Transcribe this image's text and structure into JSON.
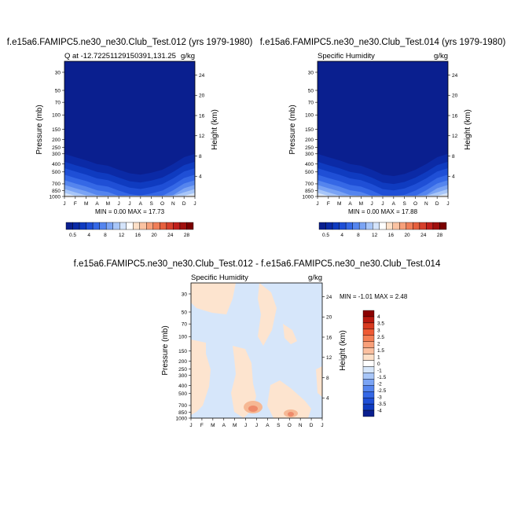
{
  "colors": {
    "upper_fill": "#0a1f8f",
    "blue_ramp": [
      "#0a1f8f",
      "#0b2aa6",
      "#0f3bc0",
      "#1f4fd6",
      "#3568e6",
      "#5585ee",
      "#7ba4f4",
      "#a8c6f8",
      "#d4e4fb",
      "#fbe6d4"
    ],
    "diff_bg": "#d6e6fa",
    "diff_pos1": "#fde4cf",
    "diff_pos2": "#f6b894",
    "diff_pos3": "#ee8a6a"
  },
  "months": [
    "J",
    "F",
    "M",
    "A",
    "M",
    "J",
    "J",
    "A",
    "S",
    "O",
    "N",
    "D",
    "J"
  ],
  "pressure_ticks": [
    "30",
    "50",
    "70",
    "100",
    "150",
    "200",
    "250",
    "300",
    "400",
    "500",
    "700",
    "850",
    "1000"
  ],
  "panel1": {
    "title": "f.e15a6.FAMIPC5.ne30_ne30.Club_Test.012 (yrs 1979-1980)",
    "left_label": "Q at -12.72251129150391,131.25",
    "right_label": "g/kg",
    "ylabel": "Pressure (mb)",
    "y2label": "Height (km)",
    "minmax": "MIN =   0.00 MAX =  17.73",
    "height_ticks": [
      "24",
      "20",
      "16",
      "12",
      "8",
      "4"
    ]
  },
  "panel2": {
    "title": "f.e15a6.FAMIPC5.ne30_ne30.Club_Test.014 (yrs 1979-1980)",
    "left_label": "Specific Humidity",
    "right_label": "g/kg",
    "ylabel": "Pressure (mb)",
    "y2label": "Height (km)",
    "minmax": "MIN =   0.00 MAX =  17.88",
    "height_ticks": [
      "24",
      "20",
      "16",
      "12",
      "8",
      "4"
    ]
  },
  "colorbar_h": {
    "labels": [
      "0.5",
      "4",
      "8",
      "12",
      "16",
      "20",
      "24",
      "28"
    ],
    "colors": [
      "#0a1f8f",
      "#0b2aa6",
      "#0f3bc0",
      "#1f4fd6",
      "#3568e6",
      "#5585ee",
      "#7ba4f4",
      "#a8c6f8",
      "#d4e4fb",
      "#ffffff",
      "#fde0c8",
      "#fbc3a2",
      "#f7a07a",
      "#f07e58",
      "#e6603e",
      "#d6402c",
      "#c0201c",
      "#a0100e",
      "#7a0000"
    ]
  },
  "panel3": {
    "title": "f.e15a6.FAMIPC5.ne30_ne30.Club_Test.012 - f.e15a6.FAMIPC5.ne30_ne30.Club_Test.014",
    "left_label": "Specific Humidity",
    "right_label": "g/kg",
    "ylabel": "Pressure (mb)",
    "y2label": "Height (km)",
    "minmax": "MIN =  -1.01 MAX =   2.48",
    "height_ticks": [
      "24",
      "20",
      "16",
      "12",
      "8",
      "4"
    ]
  },
  "colorbar_v": {
    "labels": [
      "4",
      "3.5",
      "3",
      "2.5",
      "2",
      "1.5",
      "1",
      "0",
      "-1",
      "-1.5",
      "-2",
      "-2.5",
      "-3",
      "-3.5",
      "-4"
    ],
    "colors": [
      "#8b0000",
      "#b8180f",
      "#d83a20",
      "#ee5a34",
      "#f47f55",
      "#f8a07a",
      "#fbc0a0",
      "#fde0c8",
      "#ffffff",
      "#d6e6fa",
      "#a8c6f8",
      "#7ba4f4",
      "#5585ee",
      "#3568e6",
      "#1f4fd6",
      "#0f3bc0",
      "#0a1f8f"
    ]
  },
  "chart_data": [
    {
      "type": "heatmap",
      "title": "f.e15a6.FAMIPC5.ne30_ne30.Club_Test.012 (yrs 1979-1980)",
      "xlabel": "",
      "ylabel": "Pressure (mb)",
      "y2label": "Height (km)",
      "x_categories": [
        "J",
        "F",
        "M",
        "A",
        "M",
        "J",
        "J",
        "A",
        "S",
        "O",
        "N",
        "D",
        "J"
      ],
      "y_ticks": [
        30,
        50,
        70,
        100,
        150,
        200,
        250,
        300,
        400,
        500,
        700,
        850,
        1000
      ],
      "min": 0.0,
      "max": 17.73,
      "units": "g/kg"
    },
    {
      "type": "heatmap",
      "title": "f.e15a6.FAMIPC5.ne30_ne30.Club_Test.014 (yrs 1979-1980)",
      "xlabel": "",
      "ylabel": "Pressure (mb)",
      "y2label": "Height (km)",
      "x_categories": [
        "J",
        "F",
        "M",
        "A",
        "M",
        "J",
        "J",
        "A",
        "S",
        "O",
        "N",
        "D",
        "J"
      ],
      "y_ticks": [
        30,
        50,
        70,
        100,
        150,
        200,
        250,
        300,
        400,
        500,
        700,
        850,
        1000
      ],
      "min": 0.0,
      "max": 17.88,
      "units": "g/kg"
    },
    {
      "type": "heatmap",
      "title": "f.e15a6.FAMIPC5.ne30_ne30.Club_Test.012 - f.e15a6.FAMIPC5.ne30_ne30.Club_Test.014",
      "xlabel": "",
      "ylabel": "Pressure (mb)",
      "y2label": "Height (km)",
      "x_categories": [
        "J",
        "F",
        "M",
        "A",
        "M",
        "J",
        "J",
        "A",
        "S",
        "O",
        "N",
        "D",
        "J"
      ],
      "y_ticks": [
        30,
        50,
        70,
        100,
        150,
        200,
        250,
        300,
        400,
        500,
        700,
        850,
        1000
      ],
      "min": -1.01,
      "max": 2.48,
      "units": "g/kg"
    }
  ]
}
